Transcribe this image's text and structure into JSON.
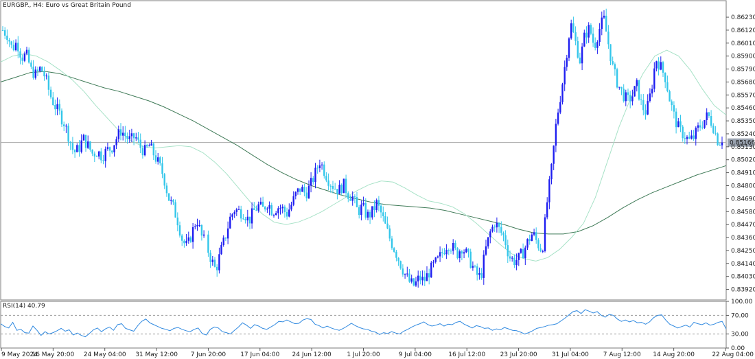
{
  "header": {
    "title": "EURGBP., H4:  Euro vs Great Britain Pound"
  },
  "rsi_panel": {
    "title": "RSI(14) 40.79"
  },
  "colors": {
    "bull": "#1d1df0",
    "bear": "#33c6ea",
    "ma_fast": "#a7e2c7",
    "ma_slow": "#3f7a57",
    "rsi_line": "#2f89e0",
    "grid": "#c8c8c8",
    "price_line": "#a9a9a9",
    "price_tag_bg": "#9aa3b0"
  },
  "chart_data": [
    {
      "type": "candlestick",
      "symbol": "EURGBP.",
      "timeframe": "H4",
      "title": "EURGBP., H4:  Euro vs Great Britain Pound",
      "ylim": [
        0.8383,
        0.8637
      ],
      "y_ticks": [
        "0.86230",
        "0.86120",
        "0.86010",
        "0.85900",
        "0.85790",
        "0.85680",
        "0.85570",
        "0.85460",
        "0.85350",
        "0.85240",
        "0.85130",
        "0.85020",
        "0.84910",
        "0.84800",
        "0.84690",
        "0.84580",
        "0.84470",
        "0.84360",
        "0.84250",
        "0.84140",
        "0.84030",
        "0.83920"
      ],
      "x_ticks": [
        "9 May 2024",
        "16 May 20:00",
        "24 May 04:00",
        "31 May 12:00",
        "7 Jun 20:00",
        "17 Jun 04:00",
        "24 Jun 12:00",
        "1 Jul 20:00",
        "9 Jul 04:00",
        "16 Jul 12:00",
        "23 Jul 20:00",
        "31 Jul 04:00",
        "7 Aug 12:00",
        "14 Aug 20:00",
        "22 Aug 04:00"
      ],
      "current_price": 0.85166,
      "current_price_label": "0.85166",
      "price_path": [
        0.8612,
        0.8608,
        0.8596,
        0.8602,
        0.8589,
        0.8591,
        0.8578,
        0.8574,
        0.858,
        0.8572,
        0.8557,
        0.8548,
        0.8541,
        0.8533,
        0.8521,
        0.8508,
        0.8511,
        0.852,
        0.8514,
        0.8507,
        0.8509,
        0.8505,
        0.851,
        0.8512,
        0.852,
        0.8527,
        0.8522,
        0.8518,
        0.8522,
        0.8513,
        0.8509,
        0.8514,
        0.8506,
        0.8498,
        0.8488,
        0.847,
        0.8462,
        0.845,
        0.8433,
        0.8428,
        0.844,
        0.8452,
        0.8437,
        0.843,
        0.8418,
        0.8408,
        0.8423,
        0.8436,
        0.8452,
        0.846,
        0.8458,
        0.8457,
        0.845,
        0.8458,
        0.8463,
        0.846,
        0.8466,
        0.8458,
        0.8462,
        0.8461,
        0.8456,
        0.8464,
        0.8473,
        0.8478,
        0.8473,
        0.848,
        0.849,
        0.8501,
        0.8492,
        0.8484,
        0.8479,
        0.8476,
        0.8481,
        0.8473,
        0.847,
        0.8458,
        0.8462,
        0.8454,
        0.8457,
        0.8465,
        0.8456,
        0.8444,
        0.8433,
        0.8424,
        0.8414,
        0.8405,
        0.8398,
        0.8395,
        0.8402,
        0.8399,
        0.8406,
        0.8412,
        0.8417,
        0.8424,
        0.8431,
        0.8428,
        0.8422,
        0.8428,
        0.8422,
        0.8414,
        0.8405,
        0.8402,
        0.8425,
        0.844,
        0.8449,
        0.8442,
        0.8436,
        0.842,
        0.8416,
        0.8418,
        0.8424,
        0.8433,
        0.844,
        0.8431,
        0.8425,
        0.8465,
        0.8495,
        0.8535,
        0.856,
        0.8588,
        0.8618,
        0.8602,
        0.8586,
        0.8608,
        0.8614,
        0.8598,
        0.8612,
        0.8622,
        0.86,
        0.8578,
        0.8566,
        0.8558,
        0.8552,
        0.8556,
        0.8565,
        0.8548,
        0.8542,
        0.856,
        0.8588,
        0.8581,
        0.8572,
        0.8552,
        0.8537,
        0.8527,
        0.8523,
        0.8518,
        0.8521,
        0.8529,
        0.8534,
        0.854,
        0.8532,
        0.8519,
        0.85166
      ],
      "ma_fast": [
        0.8585,
        0.859,
        0.8592,
        0.859,
        0.8585,
        0.8578,
        0.857,
        0.856,
        0.8548,
        0.8537,
        0.8526,
        0.8518,
        0.8513,
        0.8512,
        0.8513,
        0.8514,
        0.8513,
        0.8508,
        0.85,
        0.849,
        0.8478,
        0.8466,
        0.8456,
        0.8449,
        0.8447,
        0.8449,
        0.8453,
        0.8458,
        0.8464,
        0.847,
        0.8476,
        0.8481,
        0.8484,
        0.8483,
        0.8478,
        0.8472,
        0.8467,
        0.8465,
        0.8462,
        0.8456,
        0.8448,
        0.8439,
        0.843,
        0.8422,
        0.8418,
        0.8416,
        0.8419,
        0.8426,
        0.8436,
        0.8448,
        0.847,
        0.85,
        0.853,
        0.8555,
        0.8575,
        0.859,
        0.8595,
        0.859,
        0.8578,
        0.8562,
        0.8548,
        0.854
      ],
      "ma_slow": [
        0.8568,
        0.8572,
        0.8576,
        0.8577,
        0.8575,
        0.8571,
        0.8567,
        0.8563,
        0.856,
        0.8556,
        0.8552,
        0.8547,
        0.8541,
        0.8535,
        0.8528,
        0.8521,
        0.8514,
        0.8506,
        0.8498,
        0.8491,
        0.8485,
        0.848,
        0.8476,
        0.8472,
        0.8469,
        0.8466,
        0.8464,
        0.8463,
        0.8462,
        0.8461,
        0.8459,
        0.8456,
        0.8453,
        0.845,
        0.8447,
        0.8443,
        0.844,
        0.8439,
        0.8439,
        0.8441,
        0.8446,
        0.8453,
        0.8461,
        0.8468,
        0.8474,
        0.8479,
        0.8484,
        0.8489,
        0.8493,
        0.8497
      ],
      "rsi": {
        "name": "RSI(14)",
        "last": 40.79,
        "ylim": [
          0,
          100
        ],
        "y_ticks": [
          "100.00",
          "70.00",
          "30.00",
          "0.00"
        ],
        "levels": [
          70,
          30
        ],
        "values": [
          52,
          46,
          43,
          55,
          38,
          40,
          33,
          32,
          47,
          38,
          27,
          35,
          30,
          33,
          37,
          42,
          36,
          39,
          28,
          32,
          27,
          24,
          31,
          39,
          43,
          35,
          41,
          45,
          38,
          50,
          52,
          42,
          39,
          36,
          48,
          57,
          62,
          54,
          50,
          46,
          42,
          40,
          37,
          42,
          44,
          40,
          37,
          35,
          40,
          43,
          31,
          28,
          40,
          45,
          43,
          35,
          33,
          30,
          38,
          45,
          54,
          49,
          42,
          50,
          47,
          42,
          40,
          45,
          50,
          57,
          56,
          60,
          56,
          52,
          53,
          60,
          63,
          61,
          51,
          48,
          43,
          47,
          43,
          40,
          38,
          42,
          47,
          53,
          48,
          44,
          41,
          40,
          36,
          34,
          29,
          33,
          31,
          35,
          32,
          30,
          36,
          40,
          45,
          49,
          52,
          56,
          50,
          47,
          49,
          52,
          47,
          51,
          50,
          55,
          57,
          51,
          47,
          43,
          48,
          46,
          42,
          43,
          38,
          41,
          39,
          44,
          41,
          38,
          37,
          34,
          30,
          33,
          37,
          42,
          44,
          46,
          49,
          50,
          52,
          58,
          64,
          71,
          78,
          80,
          74,
          82,
          79,
          75,
          78,
          70,
          66,
          72,
          70,
          62,
          57,
          60,
          56,
          59,
          54,
          55,
          51,
          56,
          65,
          70,
          71,
          60,
          51,
          47,
          43,
          46,
          49,
          45,
          55,
          52,
          50,
          54,
          49,
          51,
          55,
          57,
          40.79
        ]
      }
    }
  ]
}
